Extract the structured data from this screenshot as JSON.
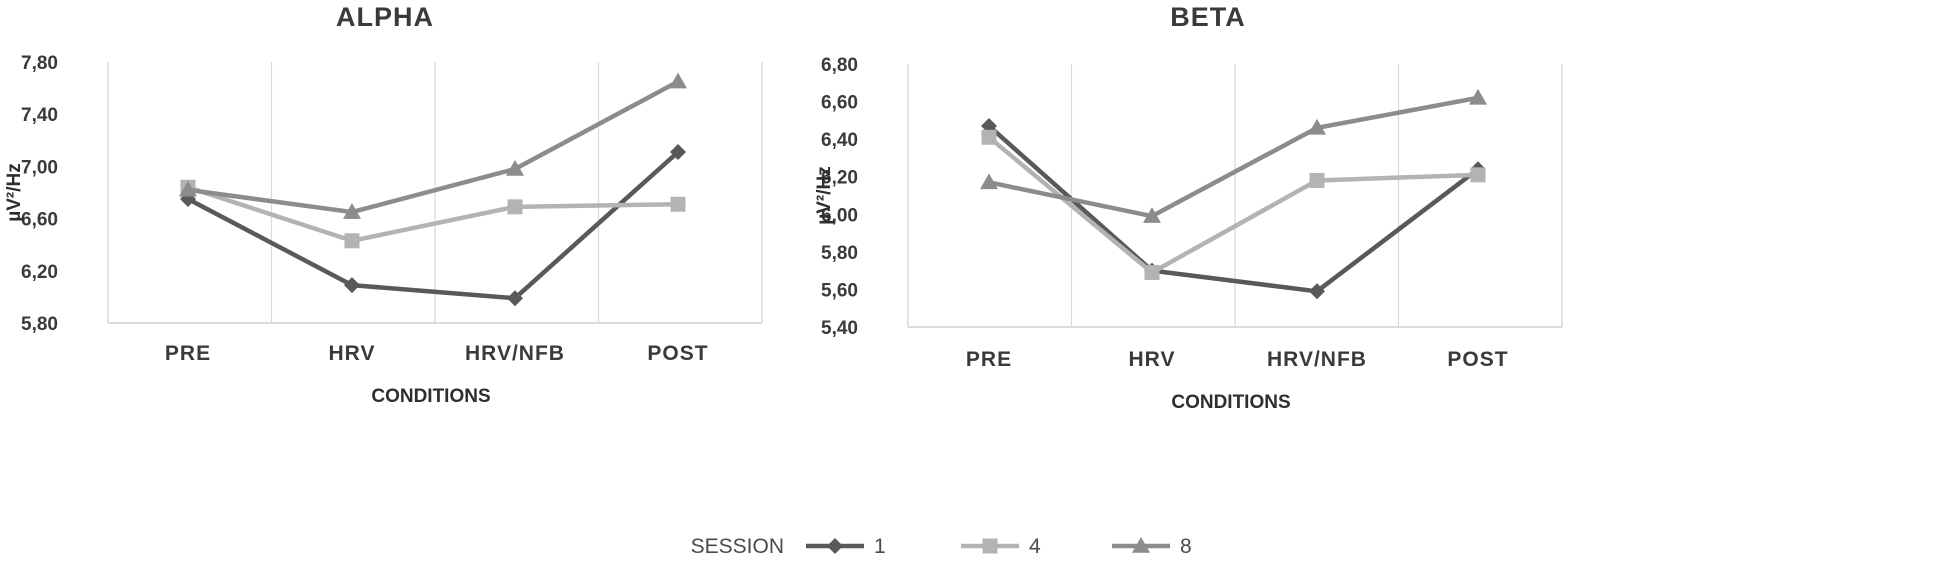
{
  "legend": {
    "title": "SESSION",
    "entries": [
      {
        "label": "1",
        "color": "#595959",
        "marker": "diamond"
      },
      {
        "label": "4",
        "color": "#b3b3b3",
        "marker": "square"
      },
      {
        "label": "8",
        "color": "#8c8c8c",
        "marker": "triangle"
      }
    ]
  },
  "chart_data": [
    {
      "type": "line",
      "title": "ALPHA",
      "xlabel": "CONDITIONS",
      "ylabel": "µV²/Hz",
      "categories": [
        "PRE",
        "HRV",
        "HRV/NFB",
        "POST"
      ],
      "ylim": [
        5.8,
        7.8
      ],
      "yticks": [
        5.8,
        6.2,
        6.6,
        7.0,
        7.4,
        7.8
      ],
      "ytick_labels": [
        "5,80",
        "6,20",
        "6,60",
        "7,00",
        "7,40",
        "7,80"
      ],
      "grid": "vertical",
      "series": [
        {
          "name": "1",
          "values": [
            6.75,
            6.09,
            5.99,
            7.11
          ],
          "color": "#595959",
          "marker": "diamond"
        },
        {
          "name": "4",
          "values": [
            6.84,
            6.43,
            6.69,
            6.71
          ],
          "color": "#b3b3b3",
          "marker": "square"
        },
        {
          "name": "8",
          "values": [
            6.82,
            6.65,
            6.98,
            7.65
          ],
          "color": "#8c8c8c",
          "marker": "triangle"
        }
      ]
    },
    {
      "type": "line",
      "title": "BETA",
      "xlabel": "CONDITIONS",
      "ylabel": "µV²/Hz",
      "categories": [
        "PRE",
        "HRV",
        "HRV/NFB",
        "POST"
      ],
      "ylim": [
        5.4,
        6.8
      ],
      "yticks": [
        5.4,
        5.6,
        5.8,
        6.0,
        6.2,
        6.4,
        6.6,
        6.8
      ],
      "ytick_labels": [
        "5,40",
        "5,60",
        "5,80",
        "6,00",
        "6,20",
        "6,40",
        "6,60",
        "6,80"
      ],
      "grid": "vertical",
      "series": [
        {
          "name": "1",
          "values": [
            6.47,
            5.7,
            5.59,
            6.24
          ],
          "color": "#595959",
          "marker": "diamond"
        },
        {
          "name": "4",
          "values": [
            6.41,
            5.69,
            6.18,
            6.21
          ],
          "color": "#b3b3b3",
          "marker": "square"
        },
        {
          "name": "8",
          "values": [
            6.17,
            5.99,
            6.46,
            6.62
          ],
          "color": "#8c8c8c",
          "marker": "triangle"
        }
      ]
    }
  ]
}
